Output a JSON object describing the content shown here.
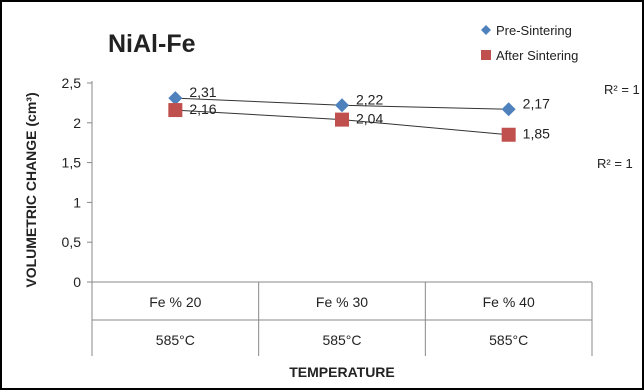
{
  "chart_data": {
    "type": "line",
    "title": "NiAl-Fe",
    "xlabel": "TEMPERATURE",
    "ylabel": "VOLUMETRIC CHANGE (cm³)",
    "ylim": [
      0,
      2.5
    ],
    "yticks": [
      "0",
      "0,5",
      "1",
      "1,5",
      "2",
      "2,5"
    ],
    "categories": [
      {
        "top": "Fe % 20",
        "bottom": "585°C"
      },
      {
        "top": "Fe % 30",
        "bottom": "585°C"
      },
      {
        "top": "Fe % 40",
        "bottom": "585°C"
      }
    ],
    "series": [
      {
        "name": "Pre-Sintering",
        "marker": "diamond",
        "color": "#4f81bd",
        "values": [
          2.31,
          2.22,
          2.17
        ],
        "labels": [
          "2,31",
          "2,22",
          "2,17"
        ],
        "r2": "R² = 1"
      },
      {
        "name": "After Sintering",
        "marker": "square",
        "color": "#c0504d",
        "values": [
          2.16,
          2.04,
          1.85
        ],
        "labels": [
          "2,16",
          "2,04",
          "1,85"
        ],
        "r2": "R² = 1"
      }
    ],
    "legend_position": "top-right",
    "grid": false
  }
}
